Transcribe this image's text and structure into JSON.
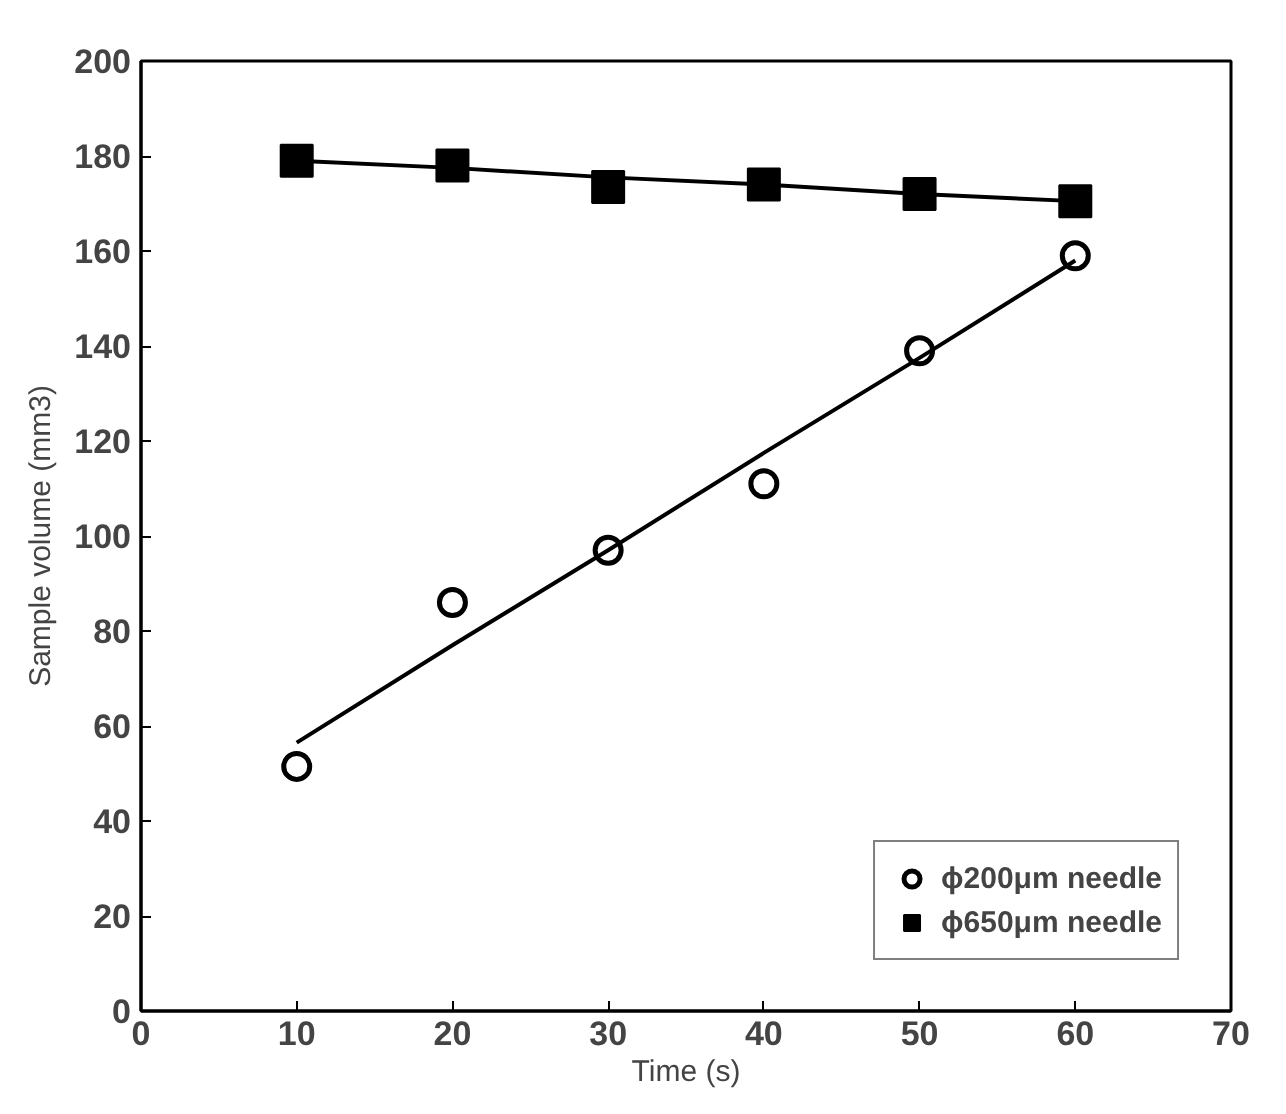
{
  "chart_data": {
    "type": "scatter",
    "xlabel": "Time (s)",
    "ylabel": "Sample volume (mm3)",
    "x": [
      10,
      20,
      30,
      40,
      50,
      60
    ],
    "series": [
      {
        "name": "ϕ200μm needle",
        "color": "#000000",
        "marker": "circle",
        "values": [
          51.5,
          86,
          97,
          111,
          139,
          159
        ]
      },
      {
        "name": "ϕ650μm needle",
        "color": "#000000",
        "marker": "square",
        "values": [
          179,
          178,
          173.5,
          174,
          172,
          170.5
        ]
      },
      {
        "type": "line",
        "color": "#000000",
        "values": [
          56.5,
          77,
          97,
          117.5,
          137.5,
          158
        ],
        "line_style": "solid",
        "marker": "none"
      },
      {
        "type": "line",
        "color": "#000000",
        "values": [
          179,
          177.5,
          175.5,
          174,
          172,
          170.5
        ],
        "line_style": "solid",
        "marker": "none"
      }
    ],
    "xlim": [
      0,
      70
    ],
    "ylim": [
      0,
      200
    ],
    "xticks": [
      0,
      10,
      20,
      30,
      40,
      50,
      60,
      70
    ],
    "yticks": [
      0,
      20,
      40,
      60,
      80,
      100,
      120,
      140,
      160,
      180,
      200
    ],
    "grid": false,
    "legend": "bottom right"
  }
}
